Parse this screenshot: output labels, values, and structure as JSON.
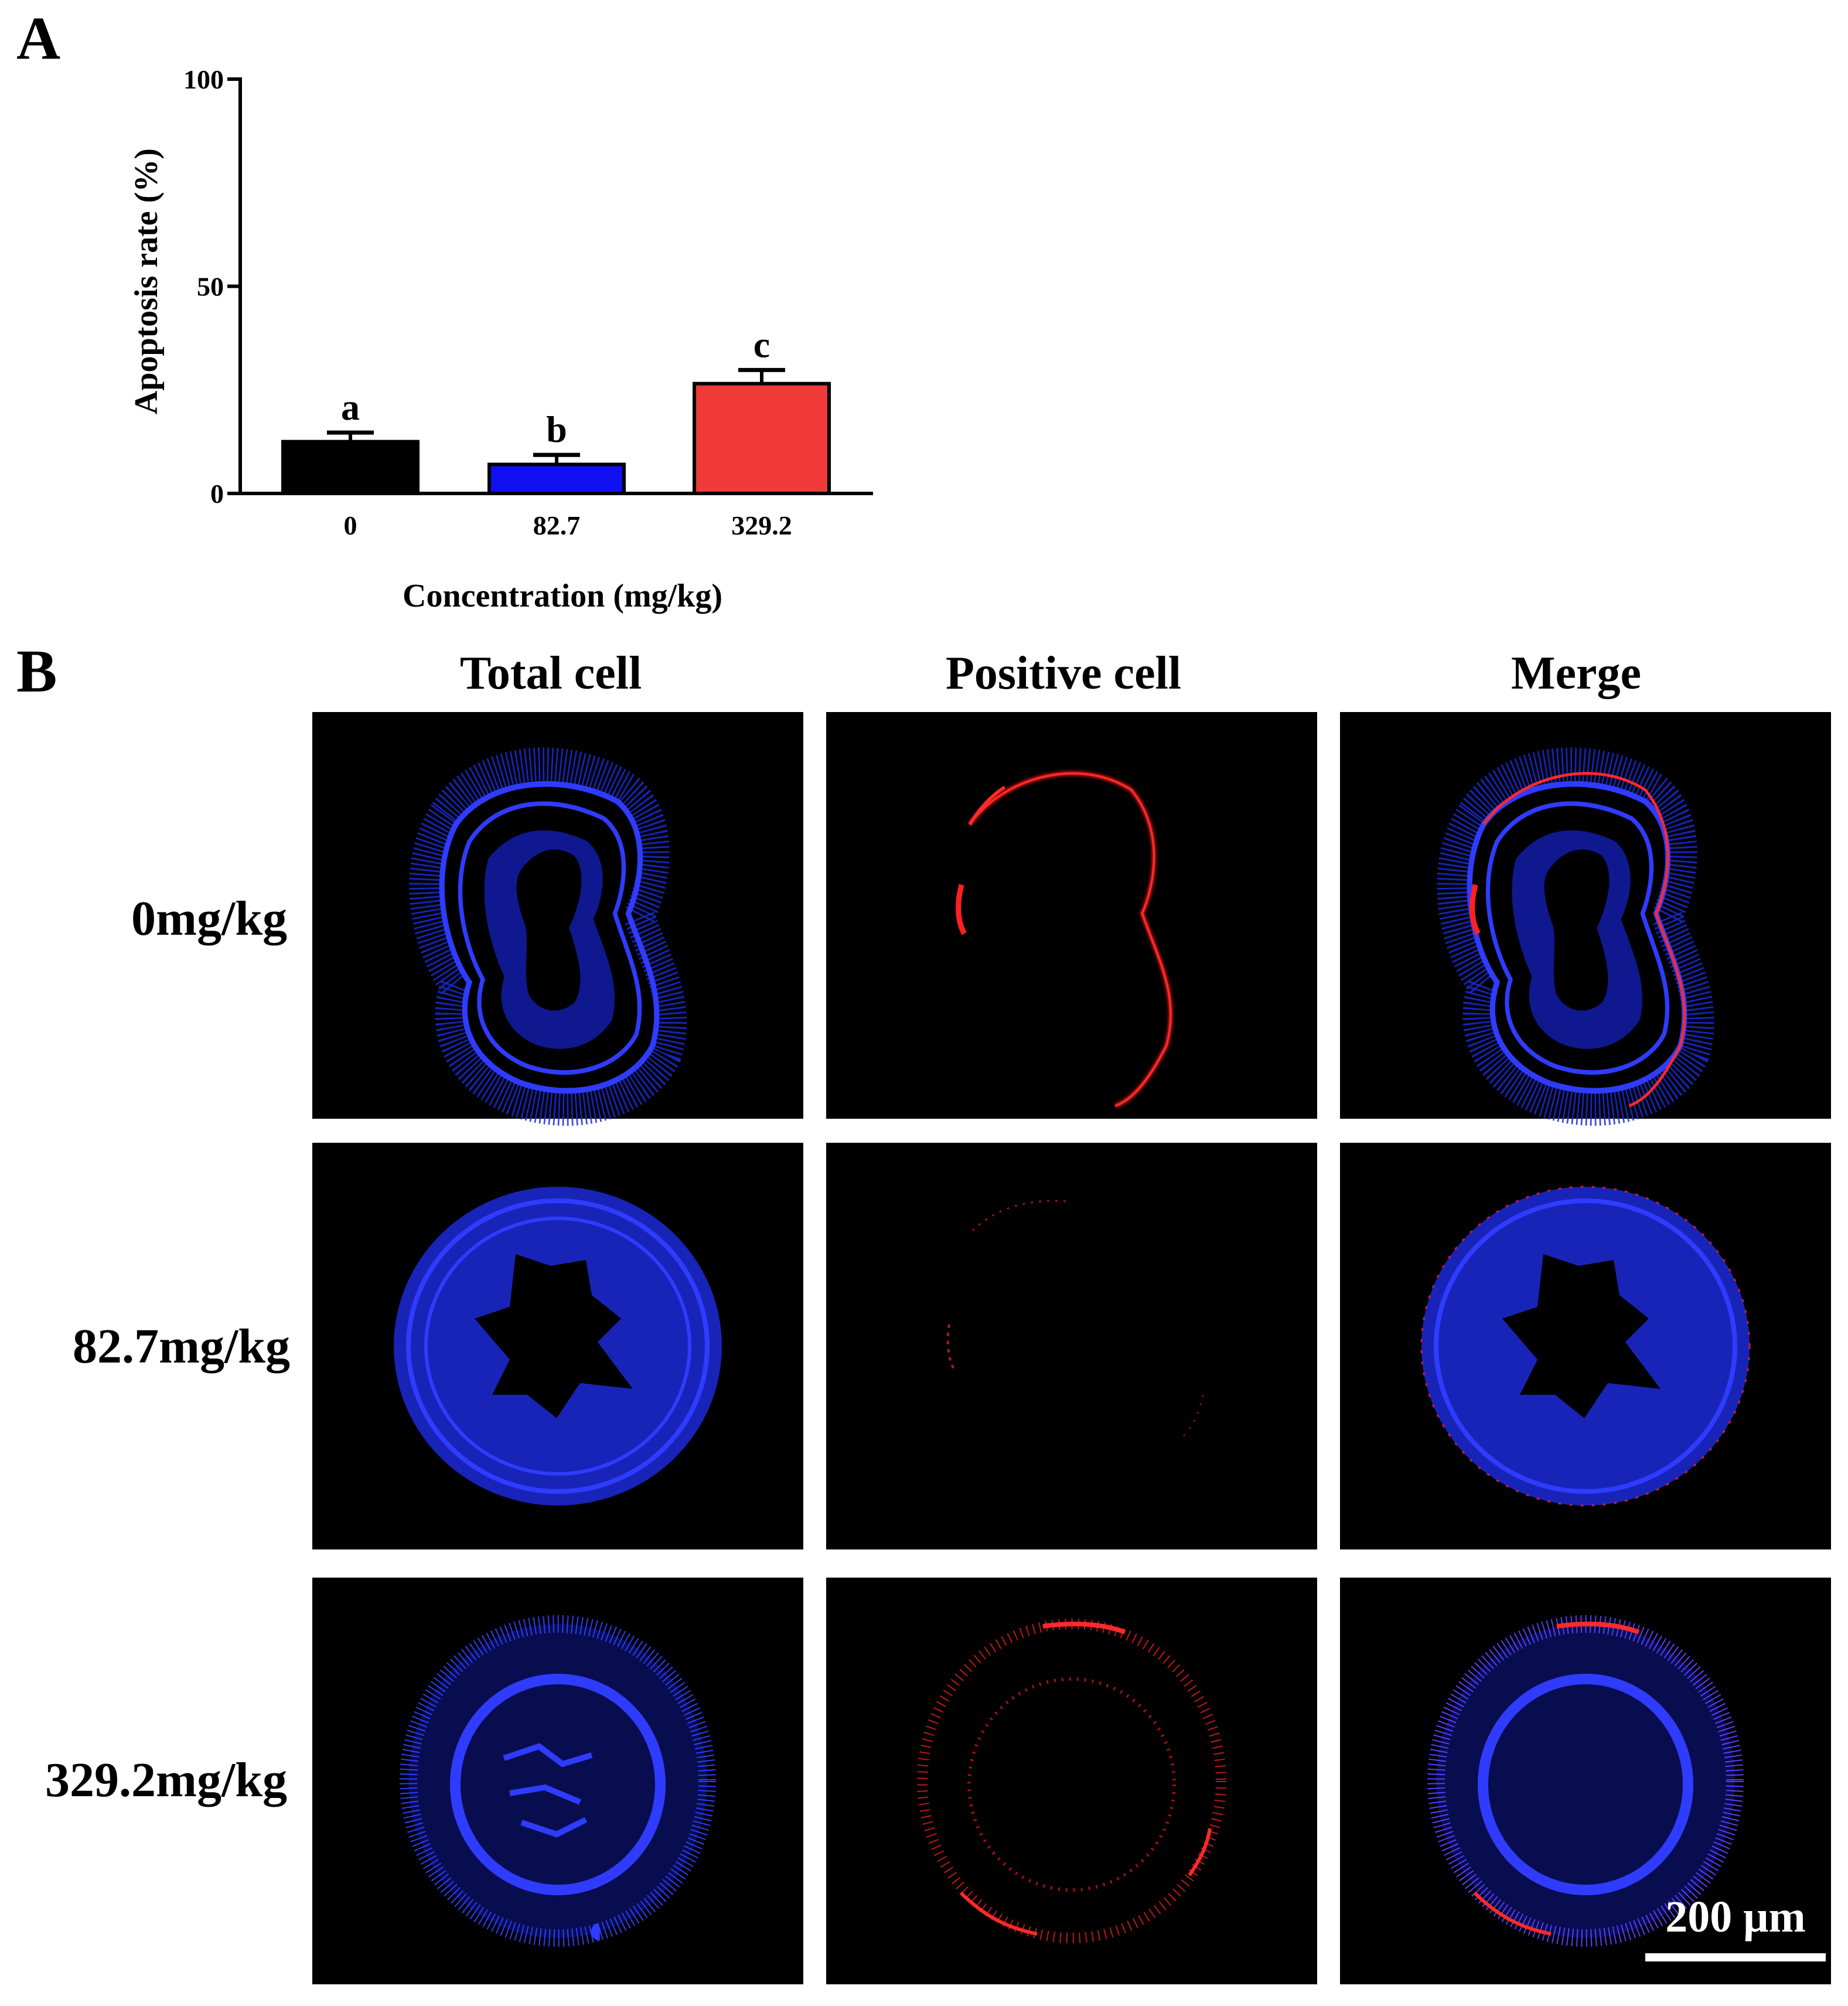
{
  "panel_a": {
    "letter": "A",
    "chart_data": {
      "type": "bar",
      "categories": [
        "0",
        "82.7",
        "329.2"
      ],
      "values": [
        12.5,
        7,
        26.5
      ],
      "errors": [
        2.2,
        2.3,
        3.3
      ],
      "significance": [
        "a",
        "b",
        "c"
      ],
      "colors": [
        "#000000",
        "#1010f0",
        "#f03a3a"
      ],
      "xlabel": "Concentration (mg/kg)",
      "ylabel": "Apoptosis rate (%)",
      "ylim": [
        0,
        100
      ],
      "yticks": [
        "0",
        "50",
        "100"
      ],
      "grid": false
    }
  },
  "panel_b": {
    "letter": "B",
    "columns": [
      "Total cell",
      "Positive cell",
      "Merge"
    ],
    "rows": [
      "0mg/kg",
      "82.7mg/kg",
      "329.2mg/kg"
    ],
    "scale_bar": "200 μm"
  }
}
